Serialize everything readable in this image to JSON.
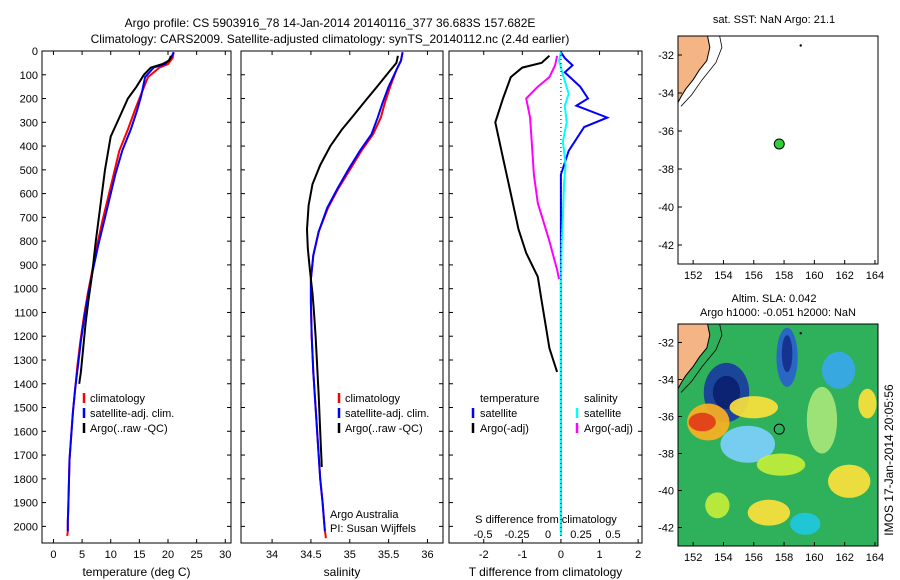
{
  "header": {
    "line1": "Argo profile: CS 5903916_78 14-Jan-2014 20140116_377 36.683S 157.682E",
    "line2": "Climatology: CARS2009. Satellite-adjusted climatology: synTS_20140112.nc (2.4d earlier)"
  },
  "side_label": "IMOS 17-Jan-2014 20:05:56",
  "colors": {
    "climatology": "#ff0000",
    "satellite": "#0000ff",
    "argo": "#000000",
    "satellite_s": "#00ffff",
    "argo_s": "#ff00ff",
    "land": "#f4b483"
  },
  "chart_data": [
    {
      "type": "line",
      "name": "temperature",
      "xlabel": "temperature (deg C)",
      "ylabel": "",
      "xlim": [
        -2,
        31
      ],
      "ylim": [
        2070,
        0
      ],
      "xticks": [
        "0",
        "5",
        "10",
        "15",
        "20",
        "25",
        "30"
      ],
      "yticks": [
        "0",
        "100",
        "200",
        "300",
        "400",
        "500",
        "600",
        "700",
        "800",
        "900",
        "1000",
        "1100",
        "1200",
        "1300",
        "1400",
        "1500",
        "1600",
        "1700",
        "1800",
        "1900",
        "2000"
      ],
      "legend": [
        "climatology",
        "satellite-adj. clim.",
        "Argo(..raw -QC)"
      ],
      "series": [
        {
          "name": "climatology",
          "color": "#ff0000",
          "x": [
            21,
            20.8,
            20,
            18.5,
            16.5,
            15,
            14.2,
            13,
            11.5,
            10.5,
            9.5,
            8.5,
            7.6,
            6.8,
            6,
            5.3,
            4.7,
            4.2,
            3.8,
            3.4,
            3.1,
            2.8,
            2.7,
            2.6,
            2.5,
            2.5,
            2.4
          ],
          "y": [
            5,
            30,
            55,
            70,
            110,
            200,
            250,
            330,
            420,
            520,
            620,
            720,
            820,
            920,
            1020,
            1120,
            1220,
            1320,
            1420,
            1520,
            1620,
            1720,
            1820,
            1920,
            1980,
            2020,
            2040
          ]
        },
        {
          "name": "satellite-adj. clim.",
          "color": "#0000ff",
          "x": [
            21,
            20.5,
            19.5,
            17.5,
            16,
            15.3,
            14.6,
            13.5,
            12,
            10.8,
            9.8,
            8.8,
            7.8,
            6.9,
            6.1,
            5.4,
            4.8,
            4.3,
            3.8,
            3.4,
            3.1,
            2.8,
            2.7,
            2.6,
            2.5,
            2.5
          ],
          "y": [
            5,
            30,
            55,
            70,
            110,
            190,
            250,
            330,
            420,
            520,
            620,
            720,
            820,
            920,
            1020,
            1120,
            1220,
            1320,
            1420,
            1520,
            1620,
            1720,
            1820,
            1920,
            1980,
            2020
          ]
        },
        {
          "name": "Argo(..raw -QC)",
          "color": "#000000",
          "x": [
            20.5,
            20.2,
            19,
            17,
            15.8,
            14.5,
            13,
            11.5,
            10,
            9,
            8.2,
            7.4,
            6.7,
            6.1,
            5.6,
            5.2,
            4.8,
            4.5
          ],
          "y": [
            20,
            40,
            55,
            70,
            100,
            150,
            200,
            280,
            360,
            500,
            650,
            800,
            950,
            1050,
            1150,
            1250,
            1350,
            1400
          ]
        }
      ]
    },
    {
      "type": "line",
      "name": "salinity",
      "xlabel": "salinity",
      "ylabel": "",
      "xlim": [
        33.6,
        36.2
      ],
      "ylim": [
        2070,
        0
      ],
      "xticks": [
        "34",
        "34.5",
        "35",
        "35.5",
        "36"
      ],
      "legend": [
        "climatology",
        "satellite-adj. clim.",
        "Argo(..raw -QC)"
      ],
      "annotations": [
        "Argo Australia",
        "PI: Susan Wijffels"
      ],
      "series": [
        {
          "name": "climatology",
          "color": "#ff0000",
          "x": [
            35.68,
            35.66,
            35.6,
            35.52,
            35.45,
            35.4,
            35.3,
            35.15,
            35,
            34.85,
            34.72,
            34.6,
            34.53,
            34.5,
            34.5,
            34.51,
            34.53,
            34.56,
            34.59,
            34.62,
            34.65,
            34.67,
            34.68,
            34.69,
            34.69
          ],
          "y": [
            5,
            40,
            80,
            150,
            220,
            280,
            350,
            420,
            500,
            580,
            660,
            760,
            860,
            960,
            1060,
            1200,
            1350,
            1500,
            1650,
            1800,
            1900,
            1980,
            2020,
            2040,
            2050
          ]
        },
        {
          "name": "satellite-adj. clim.",
          "color": "#0000ff",
          "x": [
            35.68,
            35.66,
            35.6,
            35.5,
            35.42,
            35.36,
            35.28,
            35.13,
            34.98,
            34.84,
            34.71,
            34.6,
            34.53,
            34.5,
            34.5,
            34.51,
            34.53,
            34.56,
            34.59,
            34.62,
            34.65,
            34.67,
            34.68
          ],
          "y": [
            5,
            40,
            80,
            150,
            220,
            280,
            350,
            420,
            500,
            580,
            660,
            760,
            860,
            960,
            1060,
            1200,
            1350,
            1500,
            1650,
            1800,
            1900,
            1980,
            2020
          ]
        },
        {
          "name": "Argo(..raw -QC)",
          "color": "#000000",
          "x": [
            35.62,
            35.6,
            35.5,
            35.35,
            35.2,
            35.05,
            34.9,
            34.75,
            34.62,
            34.52,
            34.47,
            34.45,
            34.46,
            34.48,
            34.5,
            34.52,
            34.54,
            34.56,
            34.58,
            34.6,
            34.62,
            34.64
          ],
          "y": [
            20,
            50,
            90,
            150,
            210,
            270,
            330,
            400,
            480,
            560,
            650,
            750,
            830,
            900,
            960,
            1020,
            1100,
            1200,
            1320,
            1450,
            1600,
            1750
          ]
        }
      ]
    },
    {
      "type": "line",
      "name": "difference",
      "xlabel": "T difference from climatology",
      "x2label": "S difference from climatology",
      "xlim": [
        -2.9,
        2.1
      ],
      "ylim": [
        2070,
        0
      ],
      "xticks": [
        "-2",
        "-1",
        "0",
        "1",
        "2"
      ],
      "x2ticks": [
        "-0.5",
        "-0.25",
        "0",
        "0.25",
        "0.5"
      ],
      "legend": [
        "temperature",
        "satellite",
        "Argo(-adj)",
        "salinity",
        "satellite",
        "Argo(-adj)"
      ],
      "series": [
        {
          "name": "temperature satellite",
          "color": "#0000ff",
          "x": [
            0,
            0.1,
            0.3,
            0.1,
            0.5,
            0.7,
            0.4,
            1.2,
            0.6,
            0.2,
            0,
            0,
            0,
            0,
            0,
            0,
            0,
            0,
            0,
            0,
            0
          ],
          "y": [
            5,
            30,
            60,
            90,
            150,
            200,
            230,
            280,
            320,
            420,
            520,
            620,
            720,
            820,
            1020,
            1220,
            1420,
            1620,
            1820,
            1980,
            2020
          ]
        },
        {
          "name": "temperature Argo(-adj)",
          "color": "#000000",
          "x": [
            -0.3,
            -0.5,
            -1,
            -1.3,
            -1.5,
            -1.7,
            -1.5,
            -1.3,
            -1.1,
            -0.9,
            -0.6,
            -0.5,
            -0.4,
            -0.3,
            -0.2,
            -0.1
          ],
          "y": [
            20,
            50,
            70,
            110,
            200,
            300,
            450,
            600,
            750,
            850,
            950,
            1050,
            1150,
            1250,
            1300,
            1350
          ]
        },
        {
          "name": "salinity satellite",
          "color": "#00ffff",
          "x": [
            0,
            -0.05,
            0.05,
            0.2,
            0.1,
            0.15,
            0.05,
            0.12,
            0.08,
            0.05,
            0.02,
            0.01,
            0,
            0,
            0,
            0,
            0,
            0,
            0
          ],
          "y": [
            5,
            40,
            100,
            180,
            230,
            300,
            380,
            480,
            560,
            700,
            800,
            900,
            1000,
            1200,
            1400,
            1600,
            1800,
            2000,
            2040
          ]
        },
        {
          "name": "salinity Argo(-adj)",
          "color": "#ff00ff",
          "x": [
            -0.1,
            -0.15,
            -0.3,
            -0.6,
            -0.9,
            -0.8,
            -0.75,
            -0.7,
            -0.6,
            -0.45,
            -0.3,
            -0.2,
            -0.1,
            -0.05
          ],
          "y": [
            20,
            60,
            110,
            150,
            200,
            280,
            400,
            520,
            640,
            720,
            800,
            860,
            920,
            960
          ]
        }
      ]
    },
    {
      "type": "scatter",
      "name": "map-sst",
      "title": "sat. SST: NaN Argo: 21.1",
      "xlim": [
        151,
        164.2
      ],
      "ylim": [
        -43,
        -31
      ],
      "xticks": [
        "152",
        "154",
        "156",
        "158",
        "160",
        "162",
        "164"
      ],
      "yticks": [
        "-32",
        "-34",
        "-36",
        "-38",
        "-40",
        "-42"
      ],
      "points": [
        {
          "lon": 157.682,
          "lat": -36.683
        }
      ]
    },
    {
      "type": "heatmap",
      "name": "map-sla",
      "title": "Altim. SLA: 0.042",
      "subtitle": "Argo h1000: -0.051 h2000: NaN",
      "xlim": [
        151,
        164.2
      ],
      "ylim": [
        -43,
        -31
      ],
      "xticks": [
        "152",
        "154",
        "156",
        "158",
        "160",
        "162",
        "164"
      ],
      "yticks": [
        "-32",
        "-34",
        "-36",
        "-38",
        "-40",
        "-42"
      ],
      "points": [
        {
          "lon": 157.682,
          "lat": -36.683
        }
      ]
    }
  ]
}
